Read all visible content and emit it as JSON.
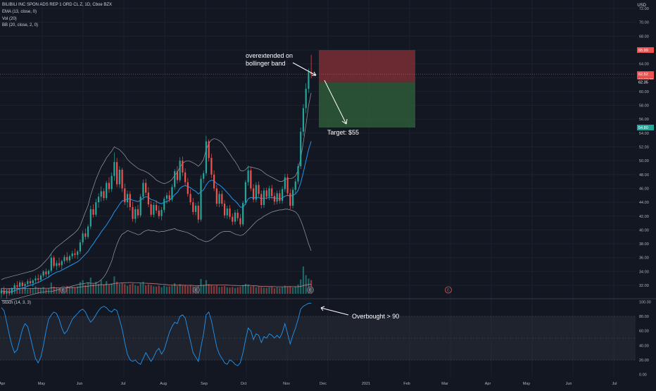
{
  "header": {
    "symbol_line": "BILIBILI INC SPON ADS REP 1 ORD CL Z, 1D, Cboe BZX",
    "ema_label": "EMA (13, close, 0)",
    "vol_label": "Vol (20)",
    "bb_label": "BB (20, close, 2, 0)",
    "currency": "USD"
  },
  "stoch_label": "Stoch (14, 3, 3)",
  "colors": {
    "background": "#131722",
    "up": "#26a69a",
    "down": "#ef5350",
    "ema": "#2196f3",
    "bb": "#9a9da6",
    "stoch": "#2196f3",
    "stop_zone": "#7a2e34",
    "target_zone": "#2e5a38",
    "annotation": "#ffffff"
  },
  "price_axis": {
    "ticks": [
      "72.00",
      "70.00",
      "68.00",
      "66.00",
      "64.00",
      "62.00",
      "60.00",
      "58.00",
      "56.00",
      "54.00",
      "52.00",
      "50.00",
      "48.00",
      "46.00",
      "44.00",
      "42.00",
      "40.00",
      "38.00",
      "36.00",
      "34.00",
      "32.00"
    ],
    "badges": [
      {
        "text": "65.99",
        "price": 65.99,
        "color": "#ef5350"
      },
      {
        "text": "62.52",
        "price": 62.52,
        "color": "#ef5350"
      },
      {
        "text": "04:03:35",
        "price": 61.7,
        "color": "#ef5350"
      },
      {
        "text": "62.35",
        "price": 61.35,
        "color": "#131722"
      },
      {
        "text": "54.80",
        "price": 54.8,
        "color": "#26a69a"
      }
    ]
  },
  "stoch_axis": {
    "ticks": [
      "100.00",
      "80.00",
      "60.00",
      "40.00",
      "20.00",
      "0.00"
    ]
  },
  "time_axis": {
    "labels": [
      "Apr",
      "May",
      "Jun",
      "Jul",
      "Aug",
      "Sep",
      "Oct",
      "Nov",
      "Dec",
      "2021",
      "Feb",
      "Mar",
      "Apr",
      "May",
      "Jun",
      "Jul"
    ]
  },
  "annotations": {
    "overextended": [
      "overextended on",
      "bollinger band"
    ],
    "target": "Target: $55",
    "overbought": "Overbought > 90"
  },
  "earnings_marker": "E",
  "chart_data": {
    "type": "candlestick",
    "title": "BILIBILI INC SPON ADS REP 1 ORD CL Z, 1D, Cboe BZX",
    "ylim": [
      30,
      73
    ],
    "ohlc": [
      [
        30.9,
        31.5,
        30.2,
        31.2
      ],
      [
        31.2,
        31.8,
        30.6,
        30.8
      ],
      [
        30.8,
        31.4,
        30.1,
        31.1
      ],
      [
        31.1,
        31.6,
        30.5,
        30.9
      ],
      [
        30.9,
        31.7,
        30.6,
        31.5
      ],
      [
        31.5,
        32.3,
        31.1,
        32.0
      ],
      [
        32.0,
        32.6,
        31.5,
        31.8
      ],
      [
        31.8,
        32.7,
        31.4,
        32.4
      ],
      [
        32.4,
        32.7,
        31.6,
        31.9
      ],
      [
        31.9,
        32.5,
        31.2,
        32.2
      ],
      [
        32.2,
        32.9,
        31.8,
        32.6
      ],
      [
        32.6,
        33.1,
        32.0,
        32.3
      ],
      [
        32.3,
        32.9,
        31.8,
        32.7
      ],
      [
        32.7,
        33.4,
        32.3,
        33.0
      ],
      [
        33.0,
        33.6,
        32.4,
        32.8
      ],
      [
        32.8,
        33.7,
        32.5,
        33.4
      ],
      [
        33.4,
        34.2,
        33.1,
        34.0
      ],
      [
        34.0,
        34.4,
        33.2,
        33.6
      ],
      [
        33.6,
        34.3,
        33.1,
        34.1
      ],
      [
        34.1,
        36.5,
        33.8,
        36.0
      ],
      [
        36.0,
        36.3,
        34.5,
        34.8
      ],
      [
        34.8,
        35.6,
        34.2,
        35.2
      ],
      [
        35.2,
        36.0,
        34.6,
        34.9
      ],
      [
        34.9,
        35.7,
        34.3,
        35.5
      ],
      [
        35.5,
        36.4,
        35.1,
        36.1
      ],
      [
        36.1,
        36.8,
        35.3,
        35.6
      ],
      [
        35.6,
        36.4,
        35.2,
        36.2
      ],
      [
        36.2,
        37.0,
        35.8,
        36.6
      ],
      [
        36.6,
        37.3,
        35.9,
        36.4
      ],
      [
        36.4,
        37.1,
        35.8,
        36.9
      ],
      [
        36.9,
        38.6,
        36.5,
        38.2
      ],
      [
        38.2,
        39.9,
        37.8,
        39.5
      ],
      [
        39.5,
        40.2,
        38.6,
        39.0
      ],
      [
        39.0,
        40.8,
        38.7,
        40.5
      ],
      [
        40.5,
        43.5,
        40.1,
        43.0
      ],
      [
        43.0,
        43.7,
        41.8,
        42.2
      ],
      [
        42.2,
        44.5,
        41.9,
        44.0
      ],
      [
        44.0,
        45.3,
        43.2,
        44.8
      ],
      [
        44.8,
        46.3,
        44.1,
        45.6
      ],
      [
        45.6,
        46.0,
        44.2,
        44.6
      ],
      [
        44.6,
        47.1,
        44.3,
        46.8
      ],
      [
        46.8,
        47.6,
        45.4,
        45.9
      ],
      [
        45.9,
        48.3,
        45.5,
        47.8
      ],
      [
        47.8,
        51.2,
        47.1,
        49.8
      ],
      [
        49.8,
        50.4,
        46.2,
        46.6
      ],
      [
        46.6,
        49.2,
        46.1,
        48.7
      ],
      [
        48.7,
        49.0,
        45.5,
        46.0
      ],
      [
        46.0,
        46.7,
        43.6,
        44.0
      ],
      [
        44.0,
        45.7,
        43.2,
        45.2
      ],
      [
        45.2,
        45.6,
        42.8,
        43.3
      ],
      [
        43.3,
        44.1,
        41.2,
        41.6
      ],
      [
        41.6,
        43.4,
        41.0,
        43.0
      ],
      [
        43.0,
        43.6,
        41.7,
        42.1
      ],
      [
        42.1,
        45.2,
        41.8,
        44.8
      ],
      [
        44.8,
        47.3,
        44.3,
        46.8
      ],
      [
        46.8,
        47.4,
        45.0,
        45.4
      ],
      [
        45.4,
        46.2,
        43.3,
        43.7
      ],
      [
        43.7,
        44.2,
        41.9,
        42.2
      ],
      [
        42.2,
        44.0,
        41.8,
        43.6
      ],
      [
        43.6,
        44.3,
        42.4,
        42.8
      ],
      [
        42.8,
        43.5,
        41.6,
        42.0
      ],
      [
        42.0,
        43.3,
        41.4,
        42.9
      ],
      [
        42.9,
        44.8,
        42.5,
        44.5
      ],
      [
        44.5,
        45.4,
        43.8,
        45.0
      ],
      [
        45.0,
        45.7,
        44.0,
        44.4
      ],
      [
        44.4,
        46.6,
        44.1,
        46.2
      ],
      [
        46.2,
        48.8,
        45.8,
        48.5
      ],
      [
        48.5,
        49.2,
        46.7,
        47.2
      ],
      [
        47.2,
        50.5,
        46.9,
        50.0
      ],
      [
        50.0,
        50.6,
        47.8,
        48.3
      ],
      [
        48.3,
        48.9,
        46.4,
        46.9
      ],
      [
        46.9,
        47.5,
        44.8,
        45.2
      ],
      [
        45.2,
        45.9,
        43.6,
        44.0
      ],
      [
        44.0,
        44.6,
        42.2,
        42.6
      ],
      [
        42.6,
        43.9,
        42.1,
        43.5
      ],
      [
        43.5,
        44.1,
        41.0,
        41.5
      ],
      [
        41.5,
        47.9,
        41.2,
        47.4
      ],
      [
        47.4,
        48.6,
        46.8,
        48.2
      ],
      [
        48.2,
        53.6,
        47.8,
        52.8
      ],
      [
        52.8,
        53.1,
        49.9,
        50.4
      ],
      [
        50.4,
        51.0,
        47.5,
        48.0
      ],
      [
        48.0,
        48.6,
        45.6,
        46.0
      ],
      [
        46.0,
        46.5,
        43.4,
        43.8
      ],
      [
        43.8,
        45.6,
        43.3,
        45.2
      ],
      [
        45.2,
        45.7,
        43.4,
        43.8
      ],
      [
        43.8,
        44.3,
        41.7,
        42.1
      ],
      [
        42.1,
        43.5,
        41.6,
        43.1
      ],
      [
        43.1,
        43.6,
        41.5,
        41.9
      ],
      [
        41.9,
        42.4,
        40.7,
        41.2
      ],
      [
        41.2,
        42.9,
        40.8,
        42.5
      ],
      [
        42.5,
        43.0,
        41.3,
        41.7
      ],
      [
        41.7,
        42.3,
        40.4,
        40.8
      ],
      [
        40.8,
        44.2,
        40.5,
        43.9
      ],
      [
        43.9,
        47.2,
        43.6,
        46.9
      ],
      [
        46.9,
        49.3,
        46.4,
        48.6
      ],
      [
        48.6,
        49.1,
        45.6,
        46.0
      ],
      [
        46.0,
        46.6,
        44.0,
        44.4
      ],
      [
        44.4,
        46.9,
        44.0,
        46.5
      ],
      [
        46.5,
        47.0,
        44.8,
        45.2
      ],
      [
        45.2,
        45.7,
        43.1,
        43.6
      ],
      [
        43.6,
        46.1,
        43.2,
        45.7
      ],
      [
        45.7,
        46.1,
        44.4,
        44.8
      ],
      [
        44.8,
        46.4,
        44.3,
        46.0
      ],
      [
        46.0,
        46.5,
        44.4,
        44.9
      ],
      [
        44.9,
        45.4,
        43.6,
        44.1
      ],
      [
        44.1,
        45.7,
        43.7,
        45.3
      ],
      [
        45.3,
        45.8,
        43.8,
        44.2
      ],
      [
        44.2,
        46.3,
        43.8,
        45.9
      ],
      [
        45.9,
        48.1,
        45.5,
        47.6
      ],
      [
        47.6,
        48.1,
        44.9,
        45.3
      ],
      [
        45.3,
        45.9,
        43.0,
        43.5
      ],
      [
        43.5,
        46.2,
        43.1,
        45.8
      ],
      [
        45.8,
        47.4,
        45.3,
        47.0
      ],
      [
        47.0,
        49.6,
        46.6,
        49.2
      ],
      [
        49.2,
        54.8,
        48.8,
        54.2
      ],
      [
        54.2,
        58.2,
        53.6,
        57.6
      ],
      [
        57.6,
        61.2,
        56.9,
        60.4
      ],
      [
        60.4,
        63.3,
        59.8,
        62.8
      ],
      [
        62.8,
        65.3,
        61.9,
        62.5
      ]
    ],
    "volume": [
      1.8,
      1.6,
      1.5,
      1.7,
      1.9,
      2.1,
      1.8,
      1.6,
      1.7,
      1.9,
      1.5,
      1.6,
      1.8,
      2.4,
      1.9,
      1.7,
      2.2,
      1.6,
      1.8,
      3.6,
      2.3,
      2.0,
      1.8,
      1.7,
      2.1,
      2.5,
      1.9,
      2.2,
      2.0,
      2.4,
      3.8,
      4.4,
      2.8,
      3.6,
      5.2,
      3.1,
      3.9,
      3.2,
      4.4,
      2.9,
      4.1,
      3.0,
      3.3,
      5.6,
      3.9,
      3.2,
      3.5,
      3.1,
      2.6,
      3.0,
      3.3,
      2.8,
      2.5,
      3.4,
      3.9,
      2.7,
      3.0,
      2.8,
      2.4,
      2.3,
      2.6,
      2.1,
      2.7,
      2.3,
      2.4,
      2.6,
      3.4,
      2.5,
      3.1,
      2.6,
      2.8,
      2.5,
      2.7,
      2.4,
      2.2,
      2.6,
      4.8,
      2.9,
      4.4,
      3.1,
      2.8,
      2.5,
      2.7,
      2.2,
      2.3,
      2.5,
      2.1,
      2.0,
      2.2,
      1.9,
      2.1,
      2.3,
      2.8,
      3.2,
      3.0,
      2.4,
      2.6,
      2.1,
      2.3,
      2.2,
      2.0,
      1.9,
      2.1,
      2.2,
      1.8,
      2.0,
      1.9,
      2.1,
      2.6,
      2.4,
      2.3,
      2.0,
      2.4,
      3.0,
      4.6,
      8.8,
      6.0,
      4.9,
      4.4
    ],
    "ema": [
      31.2,
      31.1,
      31.1,
      31.0,
      31.1,
      31.2,
      31.4,
      31.5,
      31.6,
      31.7,
      31.9,
      32.0,
      32.1,
      32.3,
      32.4,
      32.6,
      32.8,
      33.0,
      33.2,
      33.5,
      33.7,
      33.9,
      34.0,
      34.2,
      34.4,
      34.6,
      34.8,
      35.0,
      35.2,
      35.4,
      35.7,
      36.1,
      36.5,
      36.9,
      37.5,
      38.0,
      38.6,
      39.1,
      39.7,
      40.2,
      40.7,
      41.3,
      41.9,
      42.6,
      43.1,
      43.7,
      44.2,
      44.3,
      44.5,
      44.5,
      44.3,
      44.2,
      44.1,
      44.3,
      44.6,
      44.8,
      44.7,
      44.4,
      44.3,
      44.1,
      43.9,
      43.8,
      44.0,
      44.1,
      44.3,
      44.6,
      45.1,
      45.4,
      46.0,
      46.3,
      46.4,
      46.3,
      46.1,
      45.8,
      45.6,
      45.2,
      45.5,
      45.8,
      46.5,
      47.0,
      47.2,
      47.1,
      46.7,
      46.5,
      46.2,
      45.8,
      45.4,
      45.0,
      44.5,
      44.2,
      43.8,
      43.3,
      43.3,
      43.8,
      44.5,
      44.7,
      44.6,
      44.7,
      44.7,
      44.5,
      44.6,
      44.6,
      44.7,
      44.7,
      44.6,
      44.6,
      44.5,
      44.6,
      44.9,
      45.0,
      44.9,
      45.0,
      45.2,
      45.7,
      46.8,
      48.3,
      50.0,
      51.6,
      52.8
    ],
    "bb_upper": [
      32.8,
      33.0,
      33.1,
      33.2,
      33.3,
      33.4,
      33.5,
      33.6,
      33.7,
      33.8,
      33.9,
      34.0,
      34.1,
      34.3,
      34.5,
      34.8,
      35.2,
      35.6,
      36.0,
      36.6,
      37.1,
      37.5,
      37.8,
      38.1,
      38.4,
      38.7,
      39.0,
      39.3,
      39.6,
      40.0,
      40.6,
      41.6,
      42.6,
      43.5,
      45.0,
      46.2,
      47.3,
      48.2,
      49.1,
      49.7,
      50.4,
      50.9,
      51.4,
      52.0,
      51.8,
      51.6,
      51.2,
      50.8,
      50.2,
      49.8,
      49.5,
      49.2,
      48.9,
      48.7,
      48.6,
      48.4,
      48.2,
      47.9,
      47.6,
      47.2,
      47.0,
      46.8,
      46.7,
      46.8,
      47.0,
      47.3,
      47.9,
      48.3,
      49.1,
      49.6,
      49.9,
      50.0,
      49.9,
      49.7,
      49.5,
      49.2,
      49.6,
      50.2,
      51.6,
      52.5,
      53.0,
      53.2,
      53.1,
      52.9,
      52.6,
      52.1,
      51.5,
      51.0,
      50.4,
      49.9,
      49.3,
      48.6,
      48.5,
      48.7,
      49.1,
      49.1,
      49.0,
      48.9,
      48.8,
      48.6,
      48.3,
      48.0,
      47.8,
      47.6,
      47.4,
      47.2,
      47.0,
      47.0,
      47.3,
      47.4,
      47.4,
      47.5,
      47.8,
      48.6,
      50.4,
      52.6,
      55.2,
      58.0,
      59.8
    ],
    "bb_lower": [
      29.8,
      29.8,
      29.8,
      29.8,
      29.9,
      30.0,
      30.1,
      30.2,
      30.3,
      30.4,
      30.5,
      30.6,
      30.7,
      30.8,
      30.9,
      31.0,
      31.0,
      31.1,
      31.1,
      31.1,
      31.2,
      31.3,
      31.4,
      31.5,
      31.6,
      31.7,
      31.8,
      31.9,
      32.0,
      32.1,
      32.2,
      32.2,
      32.3,
      32.4,
      32.3,
      32.3,
      32.3,
      32.5,
      32.8,
      33.2,
      33.8,
      34.6,
      35.5,
      36.8,
      37.9,
      38.8,
      39.4,
      39.6,
      39.9,
      39.8,
      39.6,
      39.5,
      39.3,
      39.4,
      39.7,
      39.9,
      40.0,
      39.9,
      39.9,
      39.8,
      39.7,
      39.8,
      39.8,
      39.9,
      40.0,
      40.1,
      40.2,
      40.0,
      39.9,
      39.8,
      39.7,
      39.6,
      39.4,
      39.2,
      39.0,
      38.7,
      38.6,
      38.4,
      38.3,
      38.4,
      38.6,
      38.9,
      39.2,
      39.5,
      39.7,
      39.8,
      39.8,
      39.8,
      39.6,
      39.4,
      39.3,
      39.2,
      39.3,
      39.6,
      40.0,
      40.4,
      40.8,
      41.2,
      41.5,
      41.7,
      42.0,
      42.2,
      42.4,
      42.6,
      42.7,
      42.8,
      42.9,
      42.9,
      43.0,
      43.0,
      42.9,
      42.8,
      42.6,
      42.2,
      41.4,
      40.4,
      39.2,
      38.0,
      37.0
    ],
    "stoch_k": [
      92,
      88,
      72,
      55,
      40,
      30,
      34,
      48,
      62,
      70,
      66,
      52,
      36,
      22,
      16,
      24,
      40,
      60,
      76,
      82,
      86,
      84,
      76,
      64,
      56,
      60,
      68,
      76,
      80,
      84,
      88,
      90,
      86,
      78,
      72,
      76,
      82,
      88,
      92,
      94,
      92,
      88,
      86,
      90,
      88,
      76,
      62,
      44,
      28,
      20,
      18,
      20,
      16,
      14,
      22,
      30,
      24,
      18,
      24,
      32,
      36,
      28,
      34,
      46,
      58,
      66,
      72,
      70,
      80,
      82,
      78,
      62,
      46,
      30,
      24,
      18,
      38,
      56,
      82,
      86,
      74,
      56,
      38,
      28,
      22,
      16,
      14,
      20,
      18,
      14,
      12,
      16,
      30,
      48,
      64,
      60,
      48,
      56,
      54,
      44,
      52,
      50,
      56,
      54,
      50,
      54,
      50,
      58,
      70,
      56,
      42,
      54,
      64,
      76,
      90,
      94,
      96,
      98,
      98
    ]
  }
}
